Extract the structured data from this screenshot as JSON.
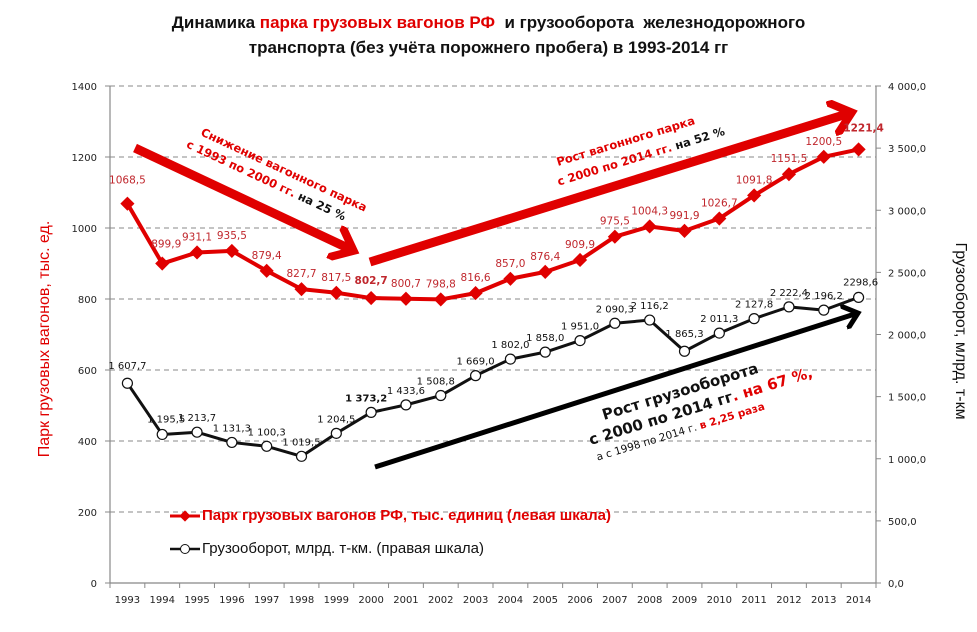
{
  "title": {
    "part1": "Динамика ",
    "part2_red": "парка грузовых вагонов РФ",
    "part3": "  и грузооборота  железнодорожного",
    "line2": "транспорта  (без учёта порожнего  пробега) в 1993-2014 гг"
  },
  "colors": {
    "red": "#e00000",
    "black": "#111111",
    "grid": "#888888"
  },
  "chart_data": {
    "type": "line",
    "categories": [
      "1993",
      "1994",
      "1995",
      "1996",
      "1997",
      "1998",
      "1999",
      "2000",
      "2001",
      "2002",
      "2003",
      "2004",
      "2005",
      "2006",
      "2007",
      "2008",
      "2009",
      "2010",
      "2011",
      "2012",
      "2013",
      "2014"
    ],
    "series": [
      {
        "name": "Парк грузовых вагонов РФ, тыс. единиц (левая шкала)",
        "axis": "left",
        "values": [
          1068.5,
          899.9,
          931.1,
          935.5,
          879.4,
          827.7,
          817.5,
          802.7,
          800.7,
          798.8,
          816.6,
          857.0,
          876.4,
          909.9,
          975.5,
          1004.3,
          991.9,
          1026.7,
          1091.8,
          1151.5,
          1200.5,
          1221.4
        ],
        "labels": [
          "1068,5",
          "899,9",
          "931,1",
          "935,5",
          "879,4",
          "827,7",
          "817,5",
          "802,7",
          "800,7",
          "798,8",
          "816,6",
          "857,0",
          "876,4",
          "909,9",
          "975,5",
          "1004,3",
          "991,9",
          "1026,7",
          "1091,8",
          "1151,5",
          "1200,5",
          "1221,4"
        ]
      },
      {
        "name": "Грузооборот, млрд. т-км. (правая шкала)",
        "axis": "right",
        "values": [
          1607.7,
          1195.5,
          1213.7,
          1131.3,
          1100.3,
          1019.5,
          1204.5,
          1373.2,
          1433.6,
          1508.8,
          1669.0,
          1802.0,
          1858.0,
          1951.0,
          2090.3,
          2116.2,
          1865.3,
          2011.3,
          2127.8,
          2222.4,
          2196.2,
          2298.6
        ],
        "labels": [
          "1 607,7",
          "1 195,5",
          "1 213,7",
          "1 131,3",
          "1 100,3",
          "1 019,5",
          "1 204,5",
          "1 373,2",
          "1 433,6",
          "1 508,8",
          "1 669,0",
          "1 802,0",
          "1 858,0",
          "1 951,0",
          "2 090,3",
          "2 116,2",
          "1 865,3",
          "2 011,3",
          "2 127,8",
          "2 222,4",
          "2 196,2",
          "2298,6"
        ]
      }
    ],
    "ylabel_left": "Парк грузовых вагонов, тыс. ед.",
    "ylabel_right": "Грузооборот, млрд. т-км",
    "ylim_left": [
      0,
      1400
    ],
    "ylim_right": [
      0,
      4000
    ],
    "yticks_left": [
      "0",
      "200",
      "400",
      "600",
      "800",
      "1000",
      "1200",
      "1400"
    ],
    "yticks_right": [
      "0,0",
      "500,0",
      "1 000,0",
      "1 500,0",
      "2 000,0",
      "2 500,0",
      "3 000,0",
      "3 500,0",
      "4 000,0"
    ],
    "grid": true,
    "legend": "bottom-left",
    "annotations": {
      "decline_line1": "Снижение вагонного парка",
      "decline_line2a": "с 1993 по 2000 гг.",
      "decline_line2b": " на 25 %",
      "growth_line1": "Рост вагонного парка",
      "growth_line2a": "с 2000 по 2014 гг.",
      "growth_line2b": " на 52 %",
      "turnover_line1": "Рост грузооборота",
      "turnover_line2a": "с 2000 по 2014 гг",
      "turnover_line2b": ". на 67 %,",
      "turnover_line3a": "а с 1998 по 2014 г. ",
      "turnover_line3b": "в 2,25 раза"
    }
  }
}
